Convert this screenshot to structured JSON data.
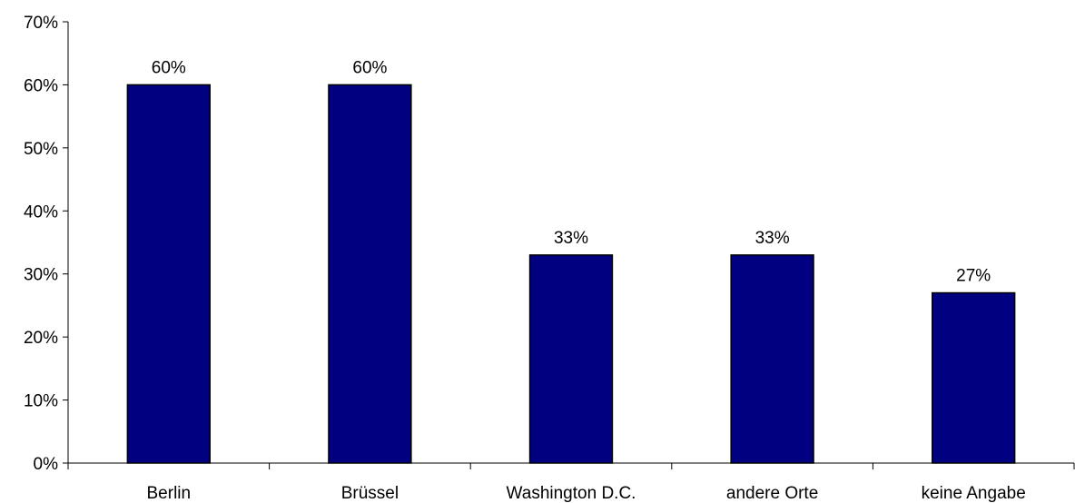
{
  "chart_data": {
    "type": "bar",
    "categories": [
      "Berlin",
      "Brüssel",
      "Washington D.C.",
      "andere Orte",
      "keine Angabe"
    ],
    "values": [
      60,
      60,
      33,
      33,
      27
    ],
    "value_labels": [
      "60%",
      "60%",
      "33%",
      "33%",
      "27%"
    ],
    "ylim": [
      0,
      70
    ],
    "ytick_values": [
      0,
      10,
      20,
      30,
      40,
      50,
      60,
      70
    ],
    "ytick_labels": [
      "0%",
      "10%",
      "20%",
      "30%",
      "40%",
      "50%",
      "60%",
      "70%"
    ],
    "grid": false,
    "bar_color": "#000080",
    "bar_edge_color": "#000000"
  }
}
